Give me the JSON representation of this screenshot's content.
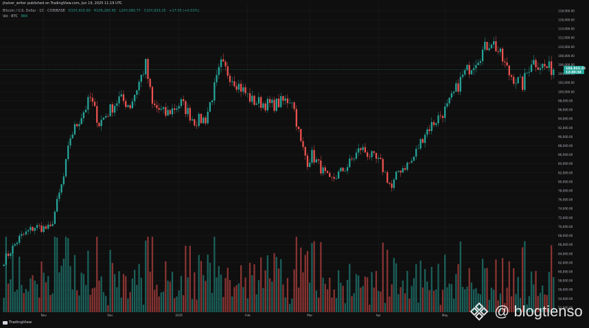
{
  "header": {
    "publisher_line": "jhalver_writer published on TradingView.com, Jun 19, 2025 11:19 UTC",
    "symbol_name": "Bitcoin / U.S. Dollar · 1D · COINBASE",
    "ohlc": {
      "open": "O104,915.60",
      "high": "H105,266.65",
      "low": "L104,090.77",
      "close": "C104,933.25",
      "change": "+17.65 (+0.02%)"
    },
    "vol_label": "Vol · BTC",
    "vol_value": "964"
  },
  "price_tag": {
    "price": "104,933.25",
    "countdown": "12:40:34"
  },
  "footer": {
    "logo_text": "TradingView",
    "watermark": "@ blogtienso"
  },
  "colors": {
    "up": "#26a69a",
    "down": "#ef5350",
    "background": "#0f0f0f",
    "grid": "#1e1e1e",
    "axis_text": "#b2b5be"
  },
  "chart_data": {
    "type": "candlestick",
    "title": "Bitcoin / U.S. Dollar · 1D · COINBASE",
    "x_start": "2024-10-14",
    "x_end": "2025-06-19",
    "x_tick_labels": [
      "Nov",
      "Dec",
      "2025",
      "Feb",
      "Mar",
      "Apr",
      "May"
    ],
    "y_tick_labels": [
      "118,000.00",
      "116,000.00",
      "114,000.00",
      "112,000.00",
      "110,000.00",
      "108,000.00",
      "106,000.00",
      "104,000.00",
      "102,000.00",
      "100,000.00",
      "98,000.00",
      "96,000.00",
      "94,000.00",
      "92,000.00",
      "90,000.00",
      "88,000.00",
      "86,000.00",
      "84,000.00",
      "82,000.00",
      "80,000.00",
      "78,000.00",
      "76,000.00",
      "74,000.00",
      "72,000.00",
      "70,000.00",
      "68,000.00",
      "66,000.00",
      "64,000.00",
      "62,000.00",
      "60,000.00",
      "58,000.00",
      "56,000.00",
      "54,000.00",
      "52,000.00"
    ],
    "ylim": [
      51000,
      119500
    ],
    "last_price": 104933.25,
    "keypoints": {
      "dates": [
        "2024-10-14",
        "2024-10-21",
        "2024-10-28",
        "2024-11-04",
        "2024-11-10",
        "2024-11-13",
        "2024-11-22",
        "2024-11-26",
        "2024-12-05",
        "2024-12-10",
        "2024-12-17",
        "2024-12-20",
        "2024-12-26",
        "2025-01-02",
        "2025-01-08",
        "2025-01-13",
        "2025-01-20",
        "2025-01-27",
        "2025-02-03",
        "2025-02-12",
        "2025-02-21",
        "2025-02-25",
        "2025-02-28",
        "2025-03-02",
        "2025-03-10",
        "2025-03-18",
        "2025-03-24",
        "2025-04-02",
        "2025-04-07",
        "2025-04-10",
        "2025-04-16",
        "2025-04-22",
        "2025-05-02",
        "2025-05-09",
        "2025-05-22",
        "2025-05-25",
        "2025-05-30",
        "2025-06-05",
        "2025-06-09",
        "2025-06-15",
        "2025-06-19"
      ],
      "close": [
        62500,
        67500,
        70000,
        69500,
        81000,
        90000,
        98500,
        93000,
        98500,
        97000,
        106000,
        97000,
        95000,
        97500,
        93500,
        94000,
        106000,
        102000,
        98000,
        97000,
        98500,
        88500,
        84500,
        86000,
        80000,
        83500,
        87500,
        84000,
        78500,
        82500,
        84500,
        91000,
        96500,
        103500,
        111500,
        109000,
        104000,
        101500,
        107000,
        105500,
        104933
      ]
    },
    "volume_ylim": [
      0,
      100000
    ],
    "volume_description_note": ""
  }
}
